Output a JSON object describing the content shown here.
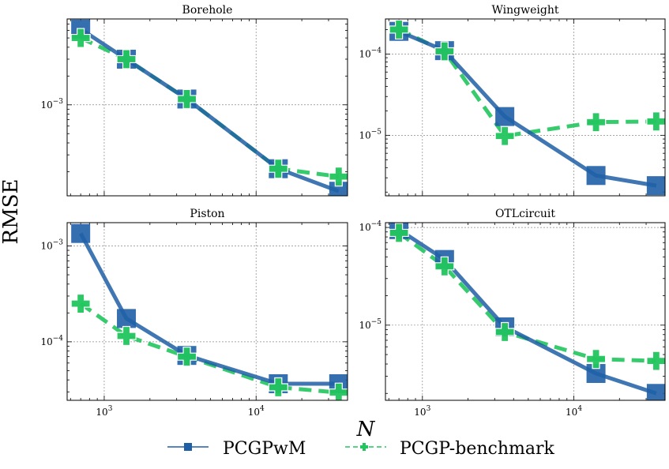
{
  "figure": {
    "ylabel": "RMSE",
    "xlabel": "N",
    "legend": [
      {
        "name": "PCGPwM",
        "color": "#1f5fa6",
        "marker": "square",
        "linestyle": "solid"
      },
      {
        "name": "PCGP-benchmark",
        "color": "#22c55e",
        "marker": "plus",
        "linestyle": "dashed"
      }
    ]
  },
  "chart_data": [
    {
      "type": "line",
      "title": "Borehole",
      "x": [
        700,
        1400,
        3500,
        14000,
        35000
      ],
      "xscale": "log",
      "yscale": "log",
      "xlim": [
        570,
        40000
      ],
      "ylim": [
        0.000112,
        0.0079
      ],
      "yticks": [
        {
          "value": 0.001,
          "label": "10^-3"
        }
      ],
      "xticks": [],
      "grid": true,
      "series": [
        {
          "name": "PCGPwM",
          "values": [
            0.0062,
            0.003,
            0.00115,
            0.000215,
            0.000125
          ]
        },
        {
          "name": "PCGP-benchmark",
          "values": [
            0.005,
            0.003,
            0.00115,
            0.000215,
            0.000178
          ]
        }
      ]
    },
    {
      "type": "line",
      "title": "Wingweight",
      "x": [
        700,
        1400,
        3500,
        14000,
        35000
      ],
      "xscale": "log",
      "yscale": "log",
      "xlim": [
        570,
        40000
      ],
      "ylim": [
        1.8e-06,
        0.00027
      ],
      "yticks": [
        {
          "value": 0.0001,
          "label": "10^-4"
        },
        {
          "value": 1e-05,
          "label": "10^-5"
        }
      ],
      "xticks": [],
      "grid": true,
      "series": [
        {
          "name": "PCGPwM",
          "values": [
            0.00019,
            0.00011,
            1.7e-05,
            3.2e-06,
            2.4e-06
          ]
        },
        {
          "name": "PCGP-benchmark",
          "values": [
            0.0002,
            0.000108,
            9.8e-06,
            1.45e-05,
            1.48e-05
          ]
        }
      ]
    },
    {
      "type": "line",
      "title": "Piston",
      "x": [
        700,
        1400,
        3500,
        14000,
        35000
      ],
      "xscale": "log",
      "yscale": "log",
      "xlim": [
        570,
        40000
      ],
      "ylim": [
        2.45e-05,
        0.00175
      ],
      "yticks": [
        {
          "value": 0.001,
          "label": "10^-3"
        },
        {
          "value": 0.0001,
          "label": "10^-4"
        }
      ],
      "xticks": [
        {
          "value": 1000,
          "label": "10^3"
        },
        {
          "value": 10000,
          "label": "10^4"
        }
      ],
      "grid": true,
      "series": [
        {
          "name": "PCGPwM",
          "values": [
            0.00135,
            0.000175,
            7.2e-05,
            3.65e-05,
            3.65e-05
          ]
        },
        {
          "name": "PCGP-benchmark",
          "values": [
            0.00025,
            0.000115,
            7e-05,
            3.35e-05,
            2.95e-05
          ]
        }
      ]
    },
    {
      "type": "line",
      "title": "OTLcircuit",
      "x": [
        700,
        1400,
        3500,
        14000,
        35000
      ],
      "xscale": "log",
      "yscale": "log",
      "xlim": [
        570,
        40000
      ],
      "ylim": [
        1.7e-06,
        0.000112
      ],
      "yticks": [
        {
          "value": 0.0001,
          "label": "10^-4"
        },
        {
          "value": 1e-05,
          "label": "10^-5"
        }
      ],
      "xticks": [
        {
          "value": 1000,
          "label": "10^3"
        },
        {
          "value": 10000,
          "label": "10^4"
        }
      ],
      "grid": true,
      "series": [
        {
          "name": "PCGPwM",
          "values": [
            9.5e-05,
            4.7e-05,
            9.6e-06,
            3.2e-06,
            2e-06
          ]
        },
        {
          "name": "PCGP-benchmark",
          "values": [
            8.8e-05,
            4e-05,
            8.5e-06,
            4.5e-06,
            4.3e-06
          ]
        }
      ]
    }
  ]
}
